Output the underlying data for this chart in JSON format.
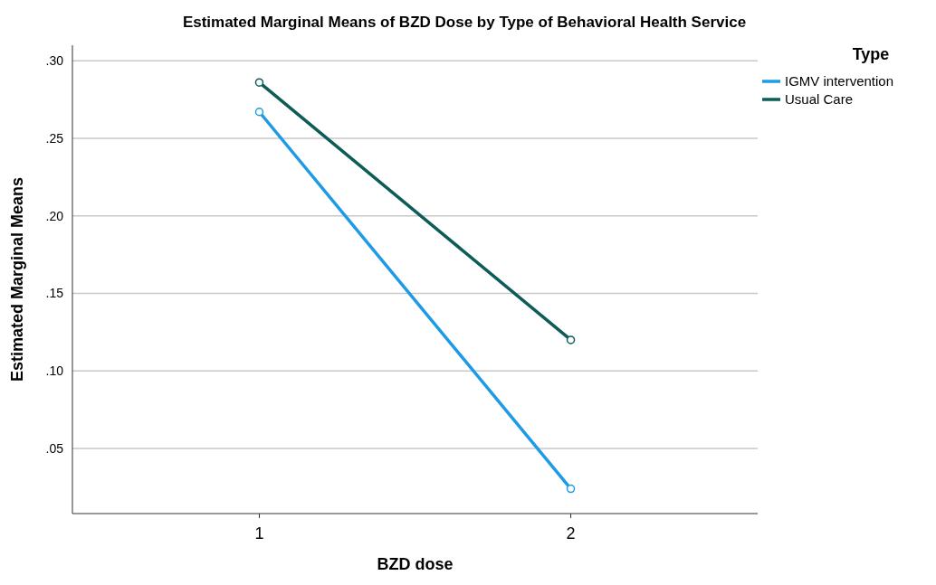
{
  "chart_data": {
    "type": "line",
    "title": "Estimated Marginal Means of BZD Dose by Type of Behavioral Health Service",
    "xlabel": "BZD dose",
    "ylabel": "Estimated Marginal Means",
    "legend_title": "Type",
    "categories": [
      "1",
      "2"
    ],
    "series": [
      {
        "name": "IGMV intervention",
        "color": "#1e9be6",
        "values": [
          0.267,
          0.024
        ]
      },
      {
        "name": "Usual Care",
        "color": "#0d5c57",
        "values": [
          0.286,
          0.12
        ]
      }
    ],
    "ylim": [
      0.008,
      0.31
    ],
    "yticks": [
      {
        "value": 0.05,
        "label": ".05"
      },
      {
        "value": 0.1,
        "label": ".10"
      },
      {
        "value": 0.15,
        "label": ".15"
      },
      {
        "value": 0.2,
        "label": ".20"
      },
      {
        "value": 0.25,
        "label": ".25"
      },
      {
        "value": 0.3,
        "label": ".30"
      }
    ],
    "grid": "y",
    "legend": "top right",
    "marker": "circle",
    "line_style": "solid"
  }
}
